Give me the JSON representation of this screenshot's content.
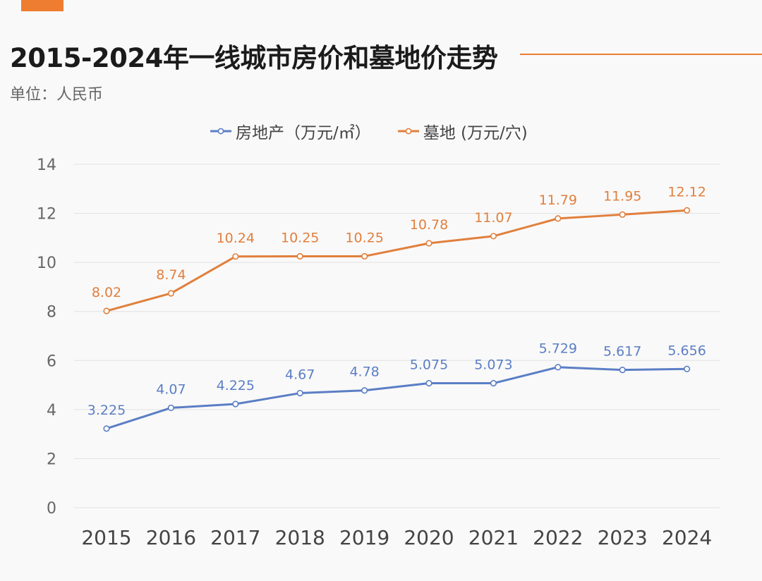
{
  "header": {
    "title": "2015-2024年一线城市房价和墓地价走势",
    "unit": "单位：人民币"
  },
  "colors": {
    "accent": "#ee7d31",
    "series_housing": "#5b7ec5",
    "series_cemetery": "#e17f3c",
    "grid": "#e1e1e1"
  },
  "chart_data": {
    "type": "line",
    "title": "2015-2024年一线城市房价和墓地价走势",
    "xlabel": "",
    "ylabel": "",
    "ylim": [
      0,
      14
    ],
    "yticks": [
      0,
      2,
      4,
      6,
      8,
      10,
      12,
      14
    ],
    "grid": true,
    "legend_position": "top",
    "categories": [
      "2015",
      "2016",
      "2017",
      "2018",
      "2019",
      "2020",
      "2021",
      "2022",
      "2023",
      "2024"
    ],
    "series": [
      {
        "name": "房地产（万元/㎡）",
        "color": "#5b7ec5",
        "values": [
          3.225,
          4.07,
          4.225,
          4.67,
          4.78,
          5.075,
          5.073,
          5.729,
          5.617,
          5.656
        ],
        "labels": [
          "3.225",
          "4.07",
          "4.225",
          "4.67",
          "4.78",
          "5.075",
          "5.073",
          "5.729",
          "5.617",
          "5.656"
        ]
      },
      {
        "name": "墓地 (万元/穴)",
        "color": "#e17f3c",
        "values": [
          8.02,
          8.74,
          10.24,
          10.25,
          10.25,
          10.78,
          11.07,
          11.79,
          11.95,
          12.12
        ],
        "labels": [
          "8.02",
          "8.74",
          "10.24",
          "10.25",
          "10.25",
          "10.78",
          "11.07",
          "11.79",
          "11.95",
          "12.12"
        ]
      }
    ]
  }
}
